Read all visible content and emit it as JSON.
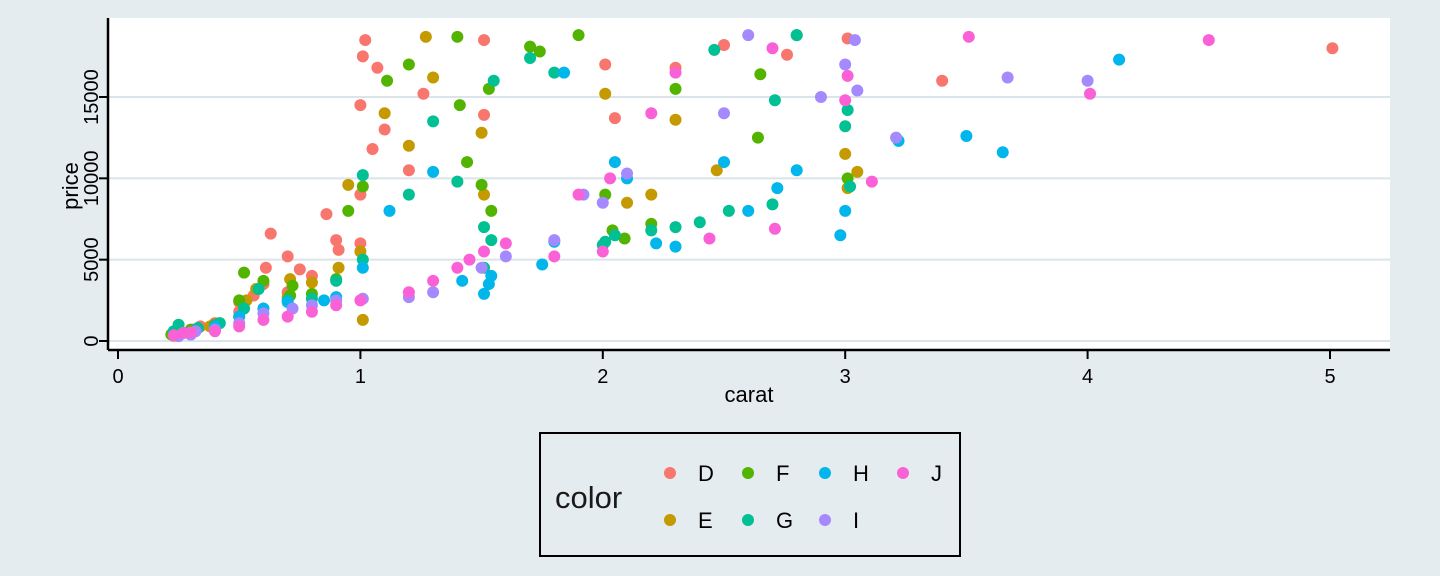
{
  "chart_data": {
    "type": "scatter",
    "title": "",
    "xlabel": "carat",
    "ylabel": "price",
    "xlim": [
      0,
      5.25
    ],
    "ylim": [
      -100,
      19100
    ],
    "x_ticks": [
      0,
      1,
      2,
      3,
      4,
      5
    ],
    "y_ticks": [
      0,
      5000,
      10000,
      15000
    ],
    "grid": "horizontal",
    "legend": {
      "title": "color",
      "placement": "bottom",
      "entries": [
        {
          "label": "D",
          "color": "#F8766D"
        },
        {
          "label": "E",
          "color": "#C49A00"
        },
        {
          "label": "F",
          "color": "#53B400"
        },
        {
          "label": "G",
          "color": "#00C094"
        },
        {
          "label": "H",
          "color": "#00B6EB"
        },
        {
          "label": "I",
          "color": "#A58AFF"
        },
        {
          "label": "J",
          "color": "#FB61D7"
        }
      ]
    },
    "series": [
      {
        "name": "D",
        "color": "#F8766D",
        "points": [
          [
            0.23,
            326
          ],
          [
            0.25,
            420
          ],
          [
            0.3,
            550
          ],
          [
            0.31,
            700
          ],
          [
            0.34,
            900
          ],
          [
            0.4,
            1100
          ],
          [
            0.5,
            1800
          ],
          [
            0.5,
            2400
          ],
          [
            0.56,
            2800
          ],
          [
            0.6,
            3500
          ],
          [
            0.61,
            4500
          ],
          [
            0.63,
            6600
          ],
          [
            0.7,
            3000
          ],
          [
            0.7,
            5200
          ],
          [
            0.75,
            4400
          ],
          [
            0.8,
            4000
          ],
          [
            0.86,
            7800
          ],
          [
            0.9,
            6200
          ],
          [
            0.91,
            5600
          ],
          [
            1.0,
            6000
          ],
          [
            1.0,
            9000
          ],
          [
            1.0,
            14500
          ],
          [
            1.01,
            17500
          ],
          [
            1.02,
            18500
          ],
          [
            1.05,
            11800
          ],
          [
            1.07,
            16800
          ],
          [
            1.1,
            13000
          ],
          [
            1.2,
            10500
          ],
          [
            1.26,
            15200
          ],
          [
            1.51,
            18500
          ],
          [
            1.51,
            13900
          ],
          [
            2.01,
            17000
          ],
          [
            2.05,
            13700
          ],
          [
            2.3,
            16800
          ],
          [
            2.5,
            18200
          ],
          [
            2.76,
            17600
          ],
          [
            3.01,
            18600
          ],
          [
            3.4,
            16000
          ],
          [
            5.01,
            18000
          ]
        ]
      },
      {
        "name": "E",
        "color": "#C49A00",
        "points": [
          [
            0.23,
            340
          ],
          [
            0.26,
            450
          ],
          [
            0.3,
            600
          ],
          [
            0.38,
            900
          ],
          [
            0.5,
            1500
          ],
          [
            0.53,
            2500
          ],
          [
            0.57,
            3200
          ],
          [
            0.7,
            2700
          ],
          [
            0.71,
            3800
          ],
          [
            0.8,
            3600
          ],
          [
            0.91,
            4500
          ],
          [
            0.95,
            9600
          ],
          [
            1.0,
            5500
          ],
          [
            1.01,
            1300
          ],
          [
            1.1,
            14000
          ],
          [
            1.2,
            12000
          ],
          [
            1.27,
            18700
          ],
          [
            1.3,
            16200
          ],
          [
            1.5,
            12800
          ],
          [
            1.51,
            9000
          ],
          [
            2.01,
            15200
          ],
          [
            2.1,
            8500
          ],
          [
            2.2,
            9000
          ],
          [
            2.3,
            13600
          ],
          [
            2.47,
            10500
          ],
          [
            3.0,
            11500
          ],
          [
            3.05,
            10400
          ],
          [
            3.01,
            9400
          ]
        ]
      },
      {
        "name": "F",
        "color": "#53B400",
        "points": [
          [
            0.22,
            400
          ],
          [
            0.3,
            700
          ],
          [
            0.4,
            1000
          ],
          [
            0.5,
            2500
          ],
          [
            0.52,
            4200
          ],
          [
            0.6,
            3700
          ],
          [
            0.71,
            2800
          ],
          [
            0.72,
            3400
          ],
          [
            0.8,
            2900
          ],
          [
            0.9,
            3800
          ],
          [
            0.95,
            8000
          ],
          [
            1.01,
            9500
          ],
          [
            1.11,
            16000
          ],
          [
            1.2,
            17000
          ],
          [
            1.4,
            18700
          ],
          [
            1.41,
            14500
          ],
          [
            1.44,
            11000
          ],
          [
            1.53,
            15500
          ],
          [
            1.5,
            9600
          ],
          [
            1.54,
            8000
          ],
          [
            1.7,
            18100
          ],
          [
            1.74,
            17800
          ],
          [
            1.9,
            18800
          ],
          [
            2.01,
            9000
          ],
          [
            2.04,
            6800
          ],
          [
            2.09,
            6300
          ],
          [
            2.2,
            7200
          ],
          [
            2.3,
            15500
          ],
          [
            2.65,
            16400
          ],
          [
            2.64,
            12500
          ],
          [
            2.8,
            18800
          ],
          [
            3.01,
            10000
          ]
        ]
      },
      {
        "name": "G",
        "color": "#00C094",
        "points": [
          [
            0.23,
            600
          ],
          [
            0.25,
            1000
          ],
          [
            0.33,
            800
          ],
          [
            0.42,
            1100
          ],
          [
            0.52,
            2000
          ],
          [
            0.58,
            3200
          ],
          [
            0.7,
            2500
          ],
          [
            0.8,
            2600
          ],
          [
            0.9,
            3700
          ],
          [
            1.01,
            5000
          ],
          [
            1.01,
            10200
          ],
          [
            1.2,
            9000
          ],
          [
            1.3,
            13500
          ],
          [
            1.4,
            9800
          ],
          [
            1.51,
            4500
          ],
          [
            1.51,
            7000
          ],
          [
            1.54,
            6200
          ],
          [
            1.55,
            16000
          ],
          [
            1.7,
            17400
          ],
          [
            1.8,
            16500
          ],
          [
            2.0,
            5900
          ],
          [
            2.01,
            6100
          ],
          [
            2.05,
            6500
          ],
          [
            2.2,
            6800
          ],
          [
            2.3,
            7000
          ],
          [
            2.4,
            7300
          ],
          [
            2.46,
            17900
          ],
          [
            2.52,
            8000
          ],
          [
            2.7,
            8400
          ],
          [
            2.71,
            14800
          ],
          [
            2.8,
            18800
          ],
          [
            3.0,
            13200
          ],
          [
            3.01,
            14200
          ],
          [
            3.02,
            9500
          ]
        ]
      },
      {
        "name": "H",
        "color": "#00B6EB",
        "points": [
          [
            0.27,
            500
          ],
          [
            0.3,
            400
          ],
          [
            0.4,
            900
          ],
          [
            0.5,
            1500
          ],
          [
            0.6,
            2000
          ],
          [
            0.7,
            2400
          ],
          [
            0.85,
            2500
          ],
          [
            0.9,
            2700
          ],
          [
            1.01,
            4500
          ],
          [
            1.12,
            8000
          ],
          [
            1.3,
            10400
          ],
          [
            1.42,
            3700
          ],
          [
            1.51,
            2900
          ],
          [
            1.53,
            3500
          ],
          [
            1.54,
            4000
          ],
          [
            1.75,
            4700
          ],
          [
            1.8,
            6100
          ],
          [
            1.84,
            16500
          ],
          [
            2.05,
            11000
          ],
          [
            2.1,
            10000
          ],
          [
            2.22,
            6000
          ],
          [
            2.3,
            5800
          ],
          [
            2.5,
            11000
          ],
          [
            2.6,
            8000
          ],
          [
            2.72,
            9400
          ],
          [
            2.8,
            10500
          ],
          [
            2.98,
            6500
          ],
          [
            3.0,
            8000
          ],
          [
            3.22,
            12300
          ],
          [
            3.5,
            12600
          ],
          [
            3.65,
            11600
          ],
          [
            4.13,
            17300
          ]
        ]
      },
      {
        "name": "I",
        "color": "#A58AFF",
        "points": [
          [
            0.25,
            300
          ],
          [
            0.3,
            400
          ],
          [
            0.32,
            600
          ],
          [
            0.4,
            700
          ],
          [
            0.5,
            1100
          ],
          [
            0.6,
            1700
          ],
          [
            0.72,
            2000
          ],
          [
            0.8,
            2200
          ],
          [
            0.9,
            2500
          ],
          [
            1.01,
            2600
          ],
          [
            1.2,
            2700
          ],
          [
            1.3,
            3000
          ],
          [
            1.5,
            4500
          ],
          [
            1.6,
            5200
          ],
          [
            1.8,
            6200
          ],
          [
            1.92,
            9000
          ],
          [
            2.0,
            8500
          ],
          [
            2.1,
            10300
          ],
          [
            2.5,
            14000
          ],
          [
            2.6,
            18800
          ],
          [
            2.9,
            15000
          ],
          [
            3.0,
            17000
          ],
          [
            3.04,
            18500
          ],
          [
            3.05,
            15400
          ],
          [
            3.21,
            12500
          ],
          [
            3.67,
            16200
          ],
          [
            4.0,
            16000
          ]
        ]
      },
      {
        "name": "J",
        "color": "#FB61D7",
        "points": [
          [
            0.23,
            350
          ],
          [
            0.27,
            500
          ],
          [
            0.3,
            520
          ],
          [
            0.4,
            600
          ],
          [
            0.5,
            900
          ],
          [
            0.6,
            1300
          ],
          [
            0.7,
            1500
          ],
          [
            0.8,
            1800
          ],
          [
            0.9,
            2200
          ],
          [
            1.0,
            2500
          ],
          [
            1.2,
            3000
          ],
          [
            1.3,
            3700
          ],
          [
            1.4,
            4500
          ],
          [
            1.45,
            5000
          ],
          [
            1.51,
            5500
          ],
          [
            1.6,
            6000
          ],
          [
            1.8,
            5200
          ],
          [
            1.9,
            9000
          ],
          [
            2.0,
            5500
          ],
          [
            2.03,
            10000
          ],
          [
            2.2,
            14000
          ],
          [
            2.3,
            16500
          ],
          [
            2.44,
            6300
          ],
          [
            2.7,
            18000
          ],
          [
            2.71,
            6900
          ],
          [
            3.0,
            14800
          ],
          [
            3.01,
            16300
          ],
          [
            3.11,
            9800
          ],
          [
            3.51,
            18700
          ],
          [
            4.01,
            15200
          ],
          [
            4.5,
            18500
          ]
        ]
      }
    ]
  }
}
